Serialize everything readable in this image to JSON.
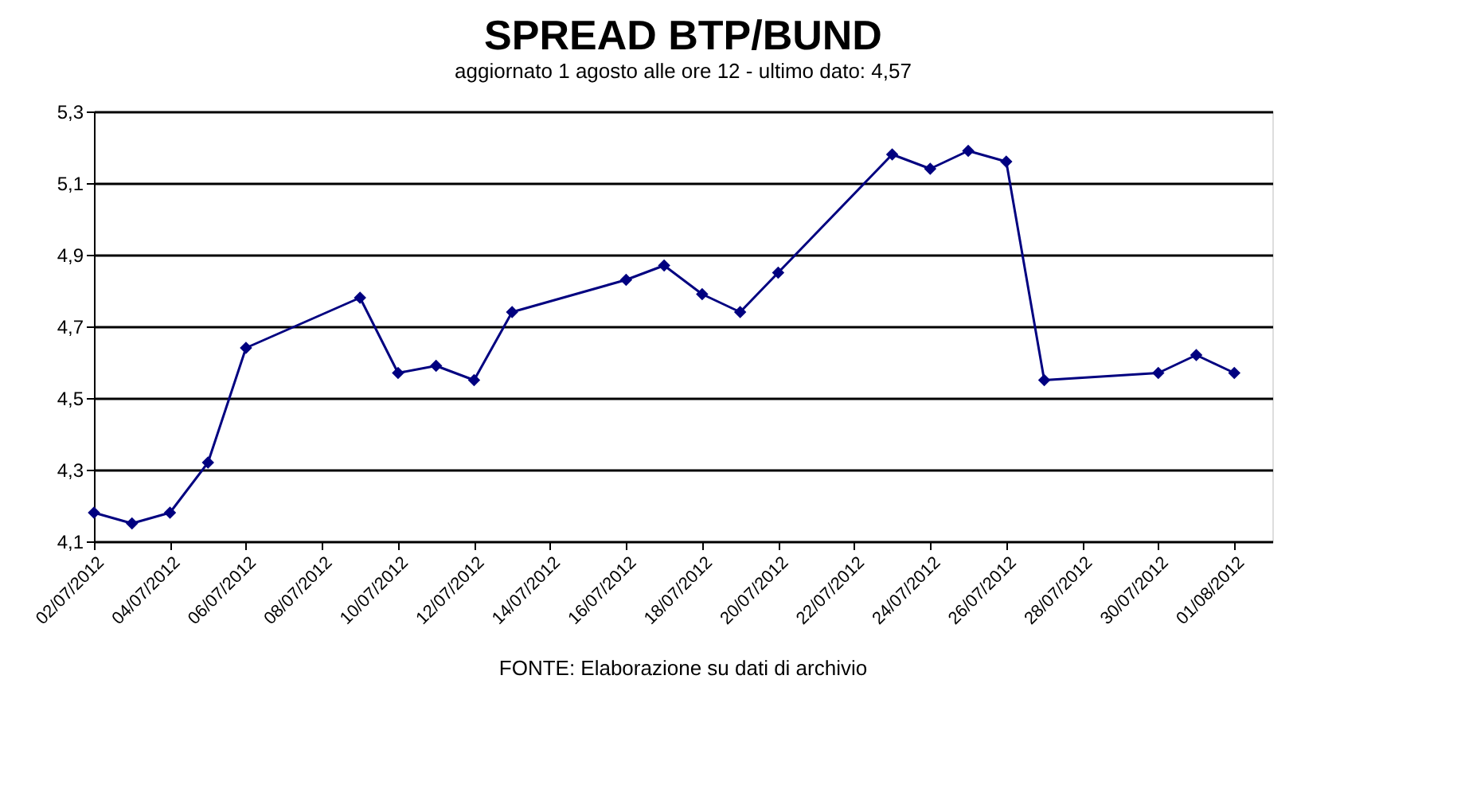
{
  "chart_data": {
    "type": "line",
    "title": "SPREAD BTP/BUND",
    "subtitle": "aggiornato 1 agosto alle ore 12 - ultimo dato: 4,57",
    "annotations": [
      "FONTE: Elaborazione su dati di archivio"
    ],
    "x": [
      "2012-07-02",
      "2012-07-03",
      "2012-07-04",
      "2012-07-05",
      "2012-07-06",
      "2012-07-09",
      "2012-07-10",
      "2012-07-11",
      "2012-07-12",
      "2012-07-13",
      "2012-07-16",
      "2012-07-17",
      "2012-07-18",
      "2012-07-19",
      "2012-07-20",
      "2012-07-23",
      "2012-07-24",
      "2012-07-25",
      "2012-07-26",
      "2012-07-27",
      "2012-07-30",
      "2012-07-31",
      "2012-08-01"
    ],
    "series": [
      {
        "color": "#000080",
        "values": [
          4.18,
          4.15,
          4.18,
          4.32,
          4.64,
          4.78,
          4.57,
          4.59,
          4.55,
          4.74,
          4.83,
          4.87,
          4.79,
          4.74,
          4.85,
          5.18,
          5.14,
          5.19,
          5.16,
          4.55,
          4.57,
          4.62,
          4.57
        ]
      }
    ],
    "xlim": [
      "2012-07-02",
      "2012-08-02"
    ],
    "xticks": [
      {
        "value": "2012-07-02",
        "label": "02/07/2012"
      },
      {
        "value": "2012-07-04",
        "label": "04/07/2012"
      },
      {
        "value": "2012-07-06",
        "label": "06/07/2012"
      },
      {
        "value": "2012-07-08",
        "label": "08/07/2012"
      },
      {
        "value": "2012-07-10",
        "label": "10/07/2012"
      },
      {
        "value": "2012-07-12",
        "label": "12/07/2012"
      },
      {
        "value": "2012-07-14",
        "label": "14/07/2012"
      },
      {
        "value": "2012-07-16",
        "label": "16/07/2012"
      },
      {
        "value": "2012-07-18",
        "label": "18/07/2012"
      },
      {
        "value": "2012-07-20",
        "label": "20/07/2012"
      },
      {
        "value": "2012-07-22",
        "label": "22/07/2012"
      },
      {
        "value": "2012-07-24",
        "label": "24/07/2012"
      },
      {
        "value": "2012-07-26",
        "label": "26/07/2012"
      },
      {
        "value": "2012-07-28",
        "label": "28/07/2012"
      },
      {
        "value": "2012-07-30",
        "label": "30/07/2012"
      },
      {
        "value": "2012-08-01",
        "label": "01/08/2012"
      }
    ],
    "ylim": [
      4.1,
      5.3
    ],
    "yticks": [
      {
        "value": 4.1,
        "label": "4,1"
      },
      {
        "value": 4.3,
        "label": "4,3"
      },
      {
        "value": 4.5,
        "label": "4,5"
      },
      {
        "value": 4.7,
        "label": "4,7"
      },
      {
        "value": 4.9,
        "label": "4,9"
      },
      {
        "value": 5.1,
        "label": "5,1"
      },
      {
        "value": 5.3,
        "label": "5,3"
      }
    ],
    "grid": "y",
    "marker": "diamond",
    "line_style": "solid"
  }
}
